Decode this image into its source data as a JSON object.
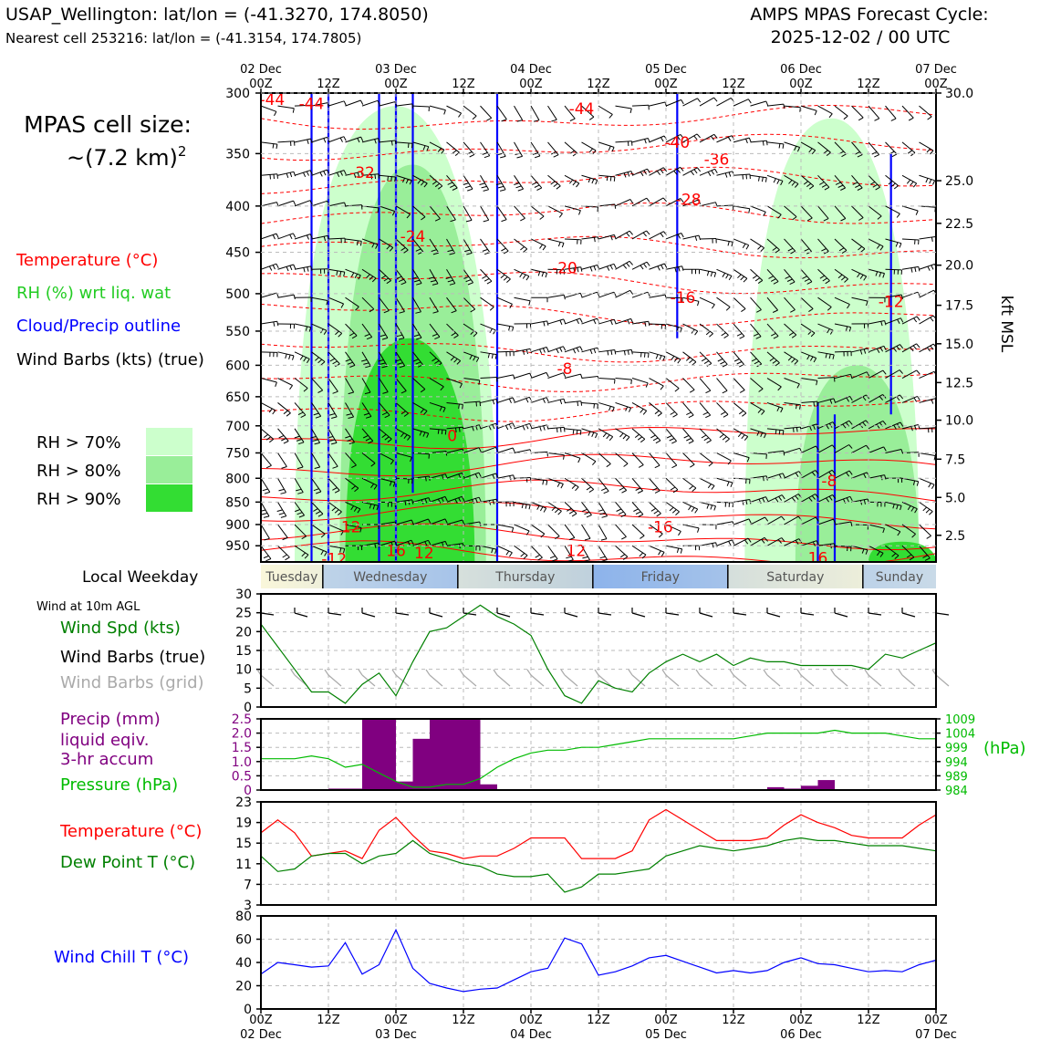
{
  "header": {
    "station_line": "USAP_Wellington: lat/lon = (-41.3270, 174.8050)",
    "cell_line": "Nearest cell 253216: lat/lon = (-41.3154, 174.7805)",
    "cycle_line1": "AMPS MPAS Forecast Cycle:",
    "cycle_line2": "2025-12-02 / 00 UTC"
  },
  "top_axis": {
    "ticks": [
      "00Z",
      "12Z",
      "00Z",
      "12Z",
      "00Z",
      "12Z",
      "00Z",
      "12Z",
      "00Z",
      "12Z",
      "00Z"
    ],
    "dates": [
      "02 Dec",
      "03 Dec",
      "04 Dec",
      "05 Dec",
      "06 Dec",
      "07 Dec"
    ]
  },
  "bottom_axis": {
    "ticks": [
      "00Z",
      "12Z",
      "00Z",
      "12Z",
      "00Z",
      "12Z",
      "00Z",
      "12Z",
      "00Z",
      "12Z",
      "00Z"
    ],
    "dates": [
      "02 Dec",
      "03 Dec",
      "04 Dec",
      "05 Dec",
      "06 Dec",
      "07 Dec"
    ]
  },
  "left_panel": {
    "cell_size_line1": "MPAS cell size:",
    "cell_size_line2": "~(7.2 km)",
    "cell_size_sup": "2",
    "legend": {
      "temperature": "Temperature (°C)",
      "rh": "RH (%) wrt liq. wat",
      "cloud": "Cloud/Precip outline",
      "wind": "Wind Barbs (kts) (true)"
    },
    "rh_key": [
      "RH > 70%",
      "RH > 80%",
      "RH > 90%"
    ]
  },
  "colors": {
    "temperature": "#ff0000",
    "rh": "#22cc22",
    "cloud": "#0000ff",
    "precip": "#800080",
    "pressure": "#00bb00",
    "dewpoint": "#008000",
    "windchill": "#0000ff",
    "rh70": "#ccffcc",
    "rh80": "#99ee99",
    "rh90": "#33dd33"
  },
  "weekday_bar": {
    "label": "Local Weekday",
    "days": [
      "Tuesday",
      "Wednesday",
      "Thursday",
      "Friday",
      "Saturday",
      "Sunday"
    ]
  },
  "wind10m": {
    "title": "Wind at 10m AGL",
    "label_speed": "Wind Spd (kts)",
    "label_true": "Wind Barbs (true)",
    "label_grid": "Wind Barbs (grid)"
  },
  "precip_panel": {
    "label1": "Precip (mm)",
    "label2": "liquid eqiv.",
    "label3": "3-hr accum",
    "label_pressure": "Pressure (hPa)",
    "unit_right": "(hPa)"
  },
  "temp_panel": {
    "label_temp": "Temperature (°C)",
    "label_dew": "Dew Point T (°C)"
  },
  "chill_panel": {
    "label": "Wind Chill T (°C)"
  },
  "chart_data": [
    {
      "type": "line",
      "name": "cross-section",
      "y_axis_left": "pressure (hPa)",
      "y_ticks_left": [
        300,
        350,
        400,
        450,
        500,
        550,
        600,
        650,
        700,
        750,
        800,
        850,
        900,
        950
      ],
      "y_label_right": "kft MSL",
      "y_ticks_right": [
        "30.0",
        "25.0",
        "22.5",
        "20.0",
        "17.5",
        "15.0",
        "12.5",
        "10.0",
        "7.5",
        "5.0",
        "2.5"
      ],
      "y_ticks_right_p": [
        300,
        375,
        418,
        465,
        515,
        568,
        627,
        690,
        762,
        840,
        925
      ],
      "ylim": [
        990,
        300
      ],
      "temperature_labels": [
        {
          "text": "-44",
          "t": 2,
          "p": 305
        },
        {
          "text": "-44",
          "t": 9,
          "p": 308
        },
        {
          "text": "-44",
          "t": 57,
          "p": 312
        },
        {
          "text": "-40",
          "t": 74,
          "p": 340
        },
        {
          "text": "-36",
          "t": 81,
          "p": 355
        },
        {
          "text": "-32",
          "t": 18,
          "p": 367
        },
        {
          "text": "-28",
          "t": 76,
          "p": 393
        },
        {
          "text": "-24",
          "t": 27,
          "p": 432
        },
        {
          "text": "-20",
          "t": 54,
          "p": 468
        },
        {
          "text": "-16",
          "t": 75,
          "p": 505
        },
        {
          "text": "-12",
          "t": 112,
          "p": 510
        },
        {
          "text": "-8",
          "t": 54,
          "p": 605
        },
        {
          "text": "0",
          "t": 34,
          "p": 718
        },
        {
          "text": "-8",
          "t": 101,
          "p": 805
        },
        {
          "text": "12",
          "t": 16,
          "p": 905
        },
        {
          "text": "-16",
          "t": 71,
          "p": 905
        },
        {
          "text": "16",
          "t": 24,
          "p": 962
        },
        {
          "text": "12",
          "t": 29,
          "p": 967
        },
        {
          "text": "12",
          "t": 56,
          "p": 962
        },
        {
          "text": "-12",
          "t": 13,
          "p": 982
        },
        {
          "text": "16",
          "t": 99,
          "p": 980
        }
      ],
      "rh_zones": [
        {
          "level": 70,
          "t0": 6,
          "t1": 42,
          "p0": 990,
          "p1": 310
        },
        {
          "level": 80,
          "t0": 14,
          "t1": 40,
          "p0": 990,
          "p1": 360
        },
        {
          "level": 90,
          "t0": 15,
          "t1": 38,
          "p0": 990,
          "p1": 560
        },
        {
          "level": 70,
          "t0": 86,
          "t1": 117,
          "p0": 990,
          "p1": 320
        },
        {
          "level": 80,
          "t0": 95,
          "t1": 117,
          "p0": 990,
          "p1": 600
        },
        {
          "level": 90,
          "t0": 108,
          "t1": 120,
          "p0": 990,
          "p1": 940
        }
      ]
    },
    {
      "type": "line",
      "name": "wind-speed-10m",
      "x_hours": [
        0,
        6,
        9,
        12,
        15,
        18,
        21,
        24,
        27,
        30,
        33,
        36,
        39,
        42,
        45,
        48,
        51,
        54,
        57,
        60,
        63,
        66,
        69,
        72,
        75,
        78,
        81,
        84,
        87,
        90,
        93,
        96,
        99,
        102,
        105,
        108,
        111,
        114,
        117,
        120
      ],
      "values": [
        22,
        10,
        4,
        4,
        1,
        6,
        9,
        3,
        12,
        20,
        21,
        24,
        27,
        24,
        22,
        19,
        10,
        3,
        1,
        7,
        5,
        4,
        9,
        12,
        14,
        12,
        14,
        11,
        13,
        12,
        12,
        11,
        11,
        11,
        11,
        10,
        14,
        13,
        15,
        17
      ],
      "ylim": [
        0,
        30
      ],
      "y_ticks": [
        0,
        5,
        10,
        15,
        20,
        25,
        30
      ]
    },
    {
      "type": "bar",
      "name": "precip-3hr",
      "x_hours": [
        12,
        15,
        18,
        21,
        24,
        27,
        30,
        33,
        36,
        39,
        90,
        93,
        96,
        99
      ],
      "values": [
        0.05,
        0.05,
        2.5,
        2.5,
        0.3,
        1.8,
        2.5,
        2.5,
        2.5,
        0.2,
        0.1,
        0.05,
        0.15,
        0.35
      ],
      "ylim": [
        0,
        2.5
      ],
      "y_ticks": [
        "0",
        "0.5",
        "1.0",
        "1.5",
        "2.0",
        "2.5"
      ]
    },
    {
      "type": "line",
      "name": "pressure",
      "x_hours": [
        0,
        3,
        6,
        9,
        12,
        15,
        18,
        21,
        24,
        27,
        30,
        33,
        36,
        39,
        42,
        45,
        48,
        51,
        54,
        57,
        60,
        63,
        66,
        69,
        72,
        75,
        78,
        81,
        84,
        87,
        90,
        93,
        96,
        99,
        102,
        105,
        108,
        111,
        114,
        117,
        120
      ],
      "values": [
        995,
        995,
        995,
        996,
        995,
        992,
        993,
        990,
        987,
        985,
        985,
        986,
        986,
        988,
        992,
        995,
        997,
        998,
        998,
        999,
        999,
        1000,
        1001,
        1002,
        1002,
        1002,
        1002,
        1002,
        1002,
        1003,
        1004,
        1004,
        1004,
        1004,
        1005,
        1004,
        1004,
        1004,
        1003,
        1002,
        1002
      ],
      "ylim": [
        984,
        1009
      ],
      "y_ticks": [
        "1009",
        "1004",
        "999",
        "994",
        "989",
        "984"
      ]
    },
    {
      "type": "line",
      "name": "temperature-2m",
      "x_hours": [
        0,
        3,
        6,
        9,
        12,
        15,
        18,
        21,
        24,
        27,
        30,
        33,
        36,
        39,
        42,
        45,
        48,
        51,
        54,
        57,
        60,
        63,
        66,
        69,
        72,
        75,
        78,
        81,
        84,
        87,
        90,
        93,
        96,
        99,
        102,
        105,
        108,
        111,
        114,
        117,
        120
      ],
      "values": [
        17,
        19.5,
        17,
        12.5,
        13,
        13.5,
        12,
        17.5,
        20,
        16.5,
        13.5,
        13,
        12,
        12.5,
        12.5,
        14,
        16,
        16,
        16,
        12,
        12,
        12,
        13.5,
        19.5,
        21.5,
        19.5,
        17.5,
        15.5,
        15.5,
        15.5,
        16,
        18.5,
        20.5,
        19,
        18,
        16.5,
        16,
        16,
        16,
        18.5,
        20.5
      ],
      "ylim": [
        3,
        23
      ],
      "y_ticks": [
        3,
        7,
        11,
        15,
        19,
        23
      ]
    },
    {
      "type": "line",
      "name": "dewpoint-2m",
      "x_hours": [
        0,
        3,
        6,
        9,
        12,
        15,
        18,
        21,
        24,
        27,
        30,
        33,
        36,
        39,
        42,
        45,
        48,
        51,
        54,
        57,
        60,
        63,
        66,
        69,
        72,
        75,
        78,
        81,
        84,
        87,
        90,
        93,
        96,
        99,
        102,
        105,
        108,
        111,
        114,
        117,
        120
      ],
      "values": [
        12.5,
        9.5,
        10,
        12.5,
        13,
        13,
        11,
        12.5,
        13,
        15.5,
        13,
        12,
        11,
        10.5,
        9,
        8.5,
        8.5,
        9,
        5.5,
        6.5,
        9,
        9,
        9.5,
        10,
        12.5,
        13.5,
        14.5,
        14,
        13.5,
        14,
        14.5,
        15.5,
        16,
        15.5,
        15.5,
        15,
        14.5,
        14.5,
        14.5,
        14,
        13.5
      ],
      "ylim": [
        3,
        23
      ],
      "y_ticks": [
        3,
        7,
        11,
        15,
        19,
        23
      ]
    },
    {
      "type": "line",
      "name": "wind-chill",
      "x_hours": [
        0,
        3,
        6,
        9,
        12,
        15,
        18,
        21,
        24,
        27,
        30,
        33,
        36,
        39,
        42,
        45,
        48,
        51,
        54,
        57,
        60,
        63,
        66,
        69,
        72,
        75,
        78,
        81,
        84,
        87,
        90,
        93,
        96,
        99,
        102,
        105,
        108,
        111,
        114,
        117,
        120
      ],
      "values": [
        30,
        40,
        38,
        36,
        37,
        57,
        30,
        38,
        68,
        35,
        22,
        18,
        15,
        17,
        18,
        25,
        32,
        35,
        61,
        56,
        29,
        32,
        37,
        44,
        46,
        41,
        36,
        31,
        33,
        31,
        33,
        40,
        44,
        39,
        38,
        35,
        32,
        33,
        32,
        38,
        42
      ],
      "ylim": [
        0,
        80
      ],
      "y_ticks": [
        0,
        20,
        40,
        60,
        80
      ]
    }
  ]
}
